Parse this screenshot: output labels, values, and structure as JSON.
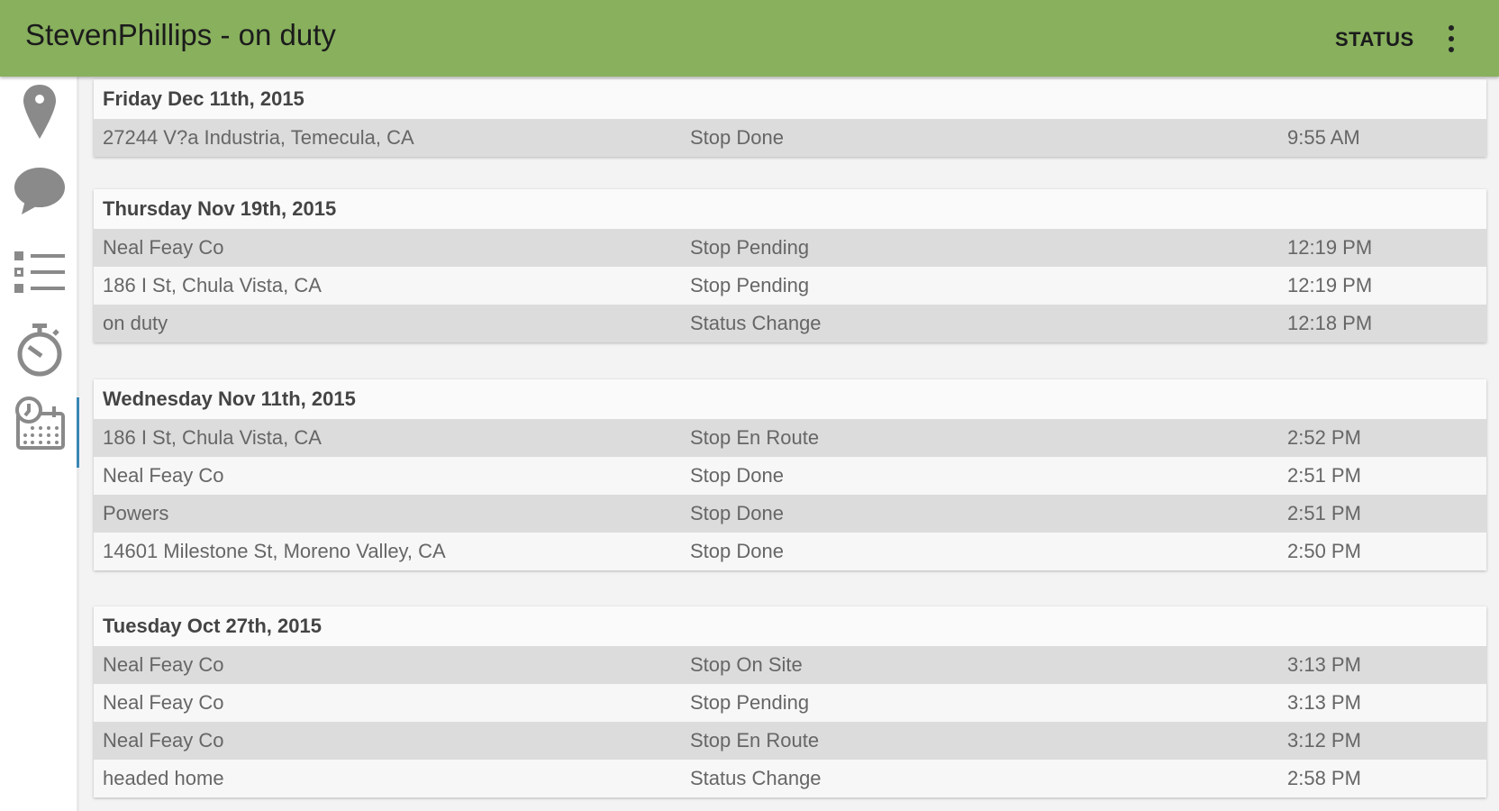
{
  "header": {
    "title": "StevenPhillips - on duty",
    "status_label": "STATUS",
    "menu_icon": "more-vert-icon"
  },
  "sidebar": {
    "items": [
      {
        "icon": "map-pin-icon"
      },
      {
        "icon": "chat-bubble-icon"
      },
      {
        "icon": "list-icon"
      },
      {
        "icon": "stopwatch-icon"
      },
      {
        "icon": "history-calendar-icon",
        "active": true
      }
    ]
  },
  "colors": {
    "appbar": "#88b05d",
    "active_indicator": "#3a87b5"
  },
  "days": [
    {
      "date": "Friday Dec 11th, 2015",
      "events": [
        {
          "name": "27244 V?a Industria, Temecula, CA",
          "type": "Stop Done",
          "time": "9:55 AM"
        }
      ]
    },
    {
      "date": "Thursday Nov 19th, 2015",
      "events": [
        {
          "name": "Neal Feay Co",
          "type": "Stop Pending",
          "time": "12:19 PM"
        },
        {
          "name": "186 I St, Chula Vista, CA",
          "type": "Stop Pending",
          "time": "12:19 PM"
        },
        {
          "name": "on duty",
          "type": "Status Change",
          "time": "12:18 PM"
        }
      ]
    },
    {
      "date": "Wednesday Nov 11th, 2015",
      "events": [
        {
          "name": "186 I St, Chula Vista, CA",
          "type": "Stop En Route",
          "time": "2:52 PM"
        },
        {
          "name": "Neal Feay Co",
          "type": "Stop Done",
          "time": "2:51 PM"
        },
        {
          "name": "Powers",
          "type": "Stop Done",
          "time": "2:51 PM"
        },
        {
          "name": "14601 Milestone St, Moreno Valley, CA",
          "type": "Stop Done",
          "time": "2:50 PM"
        }
      ]
    },
    {
      "date": "Tuesday Oct 27th, 2015",
      "events": [
        {
          "name": "Neal Feay Co",
          "type": "Stop On Site",
          "time": "3:13 PM"
        },
        {
          "name": "Neal Feay Co",
          "type": "Stop Pending",
          "time": "3:13 PM"
        },
        {
          "name": "Neal Feay Co",
          "type": "Stop En Route",
          "time": "3:12 PM"
        },
        {
          "name": "headed home",
          "type": "Status Change",
          "time": "2:58 PM"
        }
      ]
    }
  ]
}
